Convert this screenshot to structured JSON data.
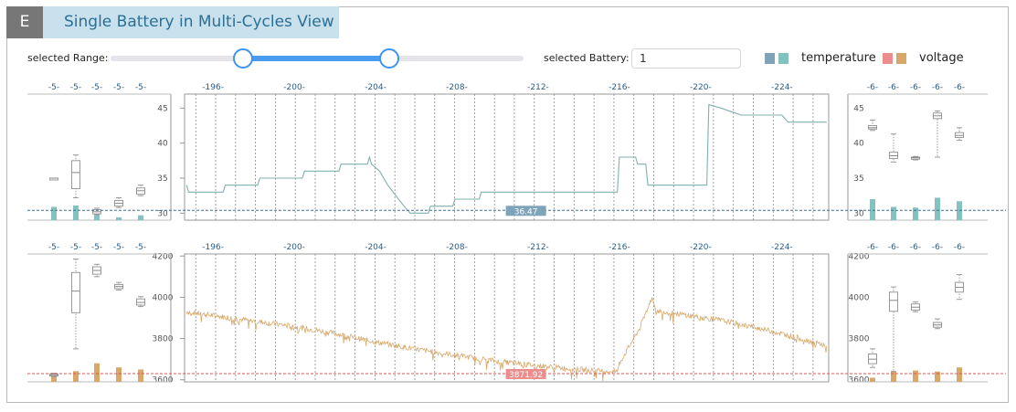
{
  "header": {
    "badge": "E",
    "title": "Single Battery in Multi-Cycles View"
  },
  "controls": {
    "range_label": "selected Range:",
    "range_low_fraction": 0.32,
    "range_high_fraction": 0.675,
    "battery_label": "selected Battery:",
    "battery_value": "1"
  },
  "legend": [
    {
      "name": "temperature",
      "colors": [
        "#7fa3b8",
        "#84c2c0"
      ]
    },
    {
      "name": "voltage",
      "colors": [
        "#ec8d8d",
        "#d8a86a"
      ]
    }
  ],
  "colors": {
    "temperature_line": "#7fb0ae",
    "temperature_bar": "#84c2c0",
    "temperature_ref": "#3b6f99",
    "temperature_tag": "#7fa3b8",
    "voltage_line": "#d8a86a",
    "voltage_bar": "#d8a86a",
    "voltage_ref": "#e05656",
    "voltage_tag": "#ec8d8d",
    "cycle_label": "#2a5d87"
  },
  "chart_data": [
    {
      "name": "temperature-timeline",
      "type": "line",
      "ylim": [
        29,
        47
      ],
      "yticks": [
        30,
        35,
        40,
        45
      ],
      "xlim": [
        194.6,
        226.3
      ],
      "cycle_labels": [
        "-196-",
        "-200-",
        "-204-",
        "-208-",
        "-212-",
        "-216-",
        "-220-",
        "-224-"
      ],
      "cycle_label_x": [
        196,
        200,
        204,
        208,
        212,
        216,
        220,
        224
      ],
      "reference": {
        "value": 30.4,
        "tag": "36.47",
        "tag_x": 211.4
      },
      "points": [
        [
          194.7,
          34
        ],
        [
          194.8,
          33
        ],
        [
          196.5,
          33
        ],
        [
          196.6,
          34
        ],
        [
          198.2,
          34
        ],
        [
          198.3,
          35
        ],
        [
          200.4,
          35
        ],
        [
          200.5,
          36
        ],
        [
          202.2,
          36
        ],
        [
          202.3,
          37
        ],
        [
          203.6,
          37
        ],
        [
          203.7,
          38
        ],
        [
          203.8,
          37
        ],
        [
          204.2,
          36
        ],
        [
          204.6,
          34
        ],
        [
          205.0,
          32.5
        ],
        [
          205.4,
          31
        ],
        [
          205.7,
          30
        ],
        [
          206.6,
          30
        ],
        [
          206.7,
          31
        ],
        [
          207.8,
          31
        ],
        [
          207.9,
          32
        ],
        [
          209.1,
          32
        ],
        [
          209.2,
          33
        ],
        [
          215.9,
          33
        ],
        [
          216.0,
          38
        ],
        [
          216.8,
          38
        ],
        [
          216.9,
          37
        ],
        [
          217.3,
          37
        ],
        [
          217.4,
          34
        ],
        [
          220.3,
          34
        ],
        [
          220.4,
          45.5
        ],
        [
          221.0,
          45
        ],
        [
          221.5,
          44.5
        ],
        [
          222.0,
          44
        ],
        [
          223.0,
          44
        ],
        [
          224.0,
          44
        ],
        [
          224.3,
          43
        ],
        [
          226.2,
          43
        ]
      ]
    },
    {
      "name": "temperature-left-distribution",
      "type": "boxplot",
      "ylim": [
        29,
        47
      ],
      "yticks": [
        30,
        35,
        40,
        45
      ],
      "cycle_labels": [
        "-5-",
        "-5-",
        "-5-",
        "-5-",
        "-5-"
      ],
      "boxes": [
        {
          "min": 35,
          "q1": 35,
          "median": 35,
          "q3": 35,
          "max": 35,
          "bar": 30.9
        },
        {
          "min": 32.2,
          "q1": 33.5,
          "median": 35.8,
          "q3": 37.5,
          "max": 38.3,
          "bar": 31.1
        },
        {
          "min": 29.8,
          "q1": 29.9,
          "median": 30.2,
          "q3": 30.5,
          "max": 30.7,
          "bar": 30.3
        },
        {
          "min": 30.8,
          "q1": 31.0,
          "median": 31.4,
          "q3": 31.8,
          "max": 32.2,
          "bar": 29.4
        },
        {
          "min": 32.5,
          "q1": 32.7,
          "median": 33.2,
          "q3": 33.6,
          "max": 34.0,
          "bar": 29.7
        }
      ]
    },
    {
      "name": "temperature-right-distribution",
      "type": "boxplot",
      "ylim": [
        29,
        47
      ],
      "yticks": [
        30,
        35,
        40,
        45
      ],
      "cycle_labels": [
        "-6-",
        "-6-",
        "-6-",
        "-6-",
        "-6-"
      ],
      "boxes": [
        {
          "min": 41.8,
          "q1": 42.0,
          "median": 42.2,
          "q3": 42.5,
          "max": 43.3,
          "bar": 32.0
        },
        {
          "min": 37.3,
          "q1": 37.8,
          "median": 38.2,
          "q3": 38.7,
          "max": 41.3,
          "bar": 30.9
        },
        {
          "min": 37.6,
          "q1": 37.7,
          "median": 37.9,
          "q3": 38.0,
          "max": 38.1,
          "bar": 30.8
        },
        {
          "min": 38.0,
          "q1": 43.5,
          "median": 43.9,
          "q3": 44.3,
          "max": 44.6,
          "bar": 32.2
        },
        {
          "min": 40.4,
          "q1": 40.8,
          "median": 41.1,
          "q3": 41.5,
          "max": 42.2,
          "bar": 31.7
        }
      ]
    },
    {
      "name": "voltage-timeline",
      "type": "line",
      "ylim": [
        3590,
        4210
      ],
      "yticks": [
        3600,
        3800,
        4000,
        4200
      ],
      "xlim": [
        194.6,
        226.3
      ],
      "cycle_labels": [
        "-196-",
        "-200-",
        "-204-",
        "-208-",
        "-212-",
        "-216-",
        "-220-",
        "-224-"
      ],
      "cycle_label_x": [
        196,
        200,
        204,
        208,
        212,
        216,
        220,
        224
      ],
      "reference": {
        "value": 3630,
        "tag": "3871.92",
        "tag_x": 211.4
      },
      "points": [
        [
          194.7,
          3930
        ],
        [
          196.0,
          3912
        ],
        [
          198.0,
          3885
        ],
        [
          200.0,
          3858
        ],
        [
          202.0,
          3825
        ],
        [
          204.0,
          3783
        ],
        [
          206.0,
          3748
        ],
        [
          208.0,
          3718
        ],
        [
          210.0,
          3690
        ],
        [
          212.0,
          3668
        ],
        [
          214.0,
          3650
        ],
        [
          215.9,
          3640
        ],
        [
          216.0,
          3680
        ],
        [
          217.0,
          3850
        ],
        [
          217.6,
          4000
        ],
        [
          217.8,
          3935
        ],
        [
          219.0,
          3918
        ],
        [
          221.0,
          3888
        ],
        [
          223.0,
          3848
        ],
        [
          225.0,
          3798
        ],
        [
          226.2,
          3764
        ]
      ]
    },
    {
      "name": "voltage-left-distribution",
      "type": "boxplot",
      "ylim": [
        3590,
        4210
      ],
      "yticks": [
        3600,
        3800,
        4000,
        4200
      ],
      "cycle_labels": [
        "-5-",
        "-5-",
        "-5-",
        "-5-",
        "-5-"
      ],
      "boxes": [
        {
          "min": 3615,
          "q1": 3618,
          "median": 3622,
          "q3": 3628,
          "max": 3632,
          "bar": 3616
        },
        {
          "min": 3750,
          "q1": 3925,
          "median": 4030,
          "q3": 4120,
          "max": 4185,
          "bar": 3642
        },
        {
          "min": 4100,
          "q1": 4112,
          "median": 4130,
          "q3": 4148,
          "max": 4160,
          "bar": 3680
        },
        {
          "min": 4035,
          "q1": 4042,
          "median": 4052,
          "q3": 4062,
          "max": 4072,
          "bar": 3660
        },
        {
          "min": 3955,
          "q1": 3962,
          "median": 3975,
          "q3": 3992,
          "max": 4003,
          "bar": 3650
        }
      ]
    },
    {
      "name": "voltage-right-distribution",
      "type": "boxplot",
      "ylim": [
        3590,
        4210
      ],
      "yticks": [
        3600,
        3800,
        4000,
        4200
      ],
      "cycle_labels": [
        "-6-",
        "-6-",
        "-6-",
        "-6-",
        "-6-"
      ],
      "boxes": [
        {
          "min": 3660,
          "q1": 3678,
          "median": 3700,
          "q3": 3725,
          "max": 3750,
          "bar": 3610
        },
        {
          "min": 3640,
          "q1": 3932,
          "median": 3985,
          "q3": 4025,
          "max": 4050,
          "bar": 3642
        },
        {
          "min": 3930,
          "q1": 3938,
          "median": 3952,
          "q3": 3968,
          "max": 3978,
          "bar": 3645
        },
        {
          "min": 3848,
          "q1": 3855,
          "median": 3866,
          "q3": 3878,
          "max": 3895,
          "bar": 3640
        },
        {
          "min": 3990,
          "q1": 4025,
          "median": 4048,
          "q3": 4072,
          "max": 4110,
          "bar": 3660
        }
      ]
    }
  ]
}
